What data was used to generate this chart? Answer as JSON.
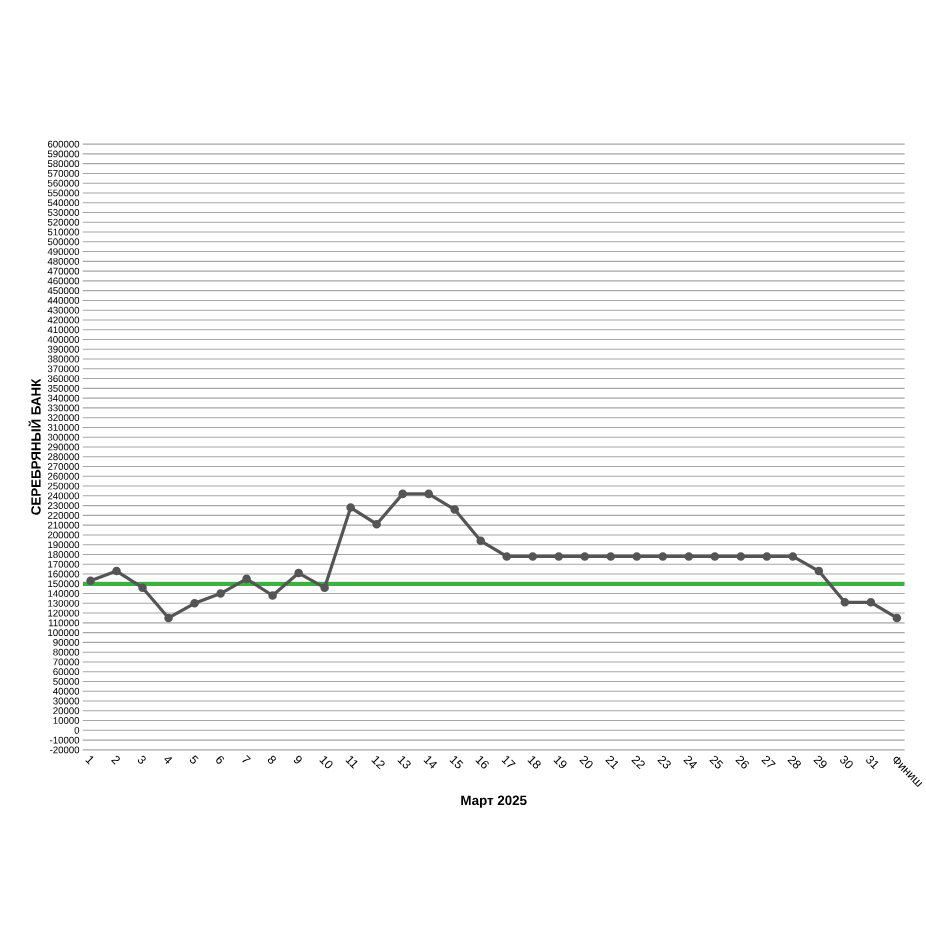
{
  "chart_data": {
    "type": "line",
    "xlabel": "Март 2025",
    "ylabel": "СЕРЕБРЯНЫЙ БАНК",
    "categories": [
      "1",
      "2",
      "3",
      "4",
      "5",
      "6",
      "7",
      "8",
      "9",
      "10",
      "11",
      "12",
      "13",
      "14",
      "15",
      "16",
      "17",
      "18",
      "19",
      "20",
      "21",
      "22",
      "23",
      "24",
      "25",
      "26",
      "27",
      "28",
      "29",
      "30",
      "31",
      "Финиш"
    ],
    "series": [
      {
        "color": "#555555",
        "values": [
          153000,
          163000,
          146000,
          115000,
          130000,
          140000,
          155000,
          138000,
          161000,
          146000,
          228000,
          211000,
          242000,
          242000,
          226000,
          194000,
          178000,
          178000,
          178000,
          178000,
          178000,
          178000,
          178000,
          178000,
          178000,
          178000,
          178000,
          178000,
          163000,
          131000,
          131000,
          115000
        ]
      }
    ],
    "ylim": [
      -20000,
      600000
    ],
    "yticks": [
      -20000,
      -10000,
      0,
      10000,
      20000,
      30000,
      40000,
      50000,
      60000,
      70000,
      80000,
      90000,
      100000,
      110000,
      120000,
      130000,
      140000,
      150000,
      160000,
      170000,
      180000,
      190000,
      200000,
      210000,
      220000,
      230000,
      240000,
      250000,
      260000,
      270000,
      280000,
      290000,
      300000,
      310000,
      320000,
      330000,
      340000,
      350000,
      360000,
      370000,
      380000,
      390000,
      400000,
      410000,
      420000,
      430000,
      440000,
      450000,
      460000,
      470000,
      480000,
      490000,
      500000,
      510000,
      520000,
      530000,
      540000,
      550000,
      560000,
      570000,
      580000,
      590000,
      600000
    ],
    "ref_lines": [
      {
        "axis": "y",
        "value": 150000,
        "color": "#3cb043"
      }
    ],
    "grid": "y",
    "marker": "circle",
    "line_style": "solid"
  }
}
